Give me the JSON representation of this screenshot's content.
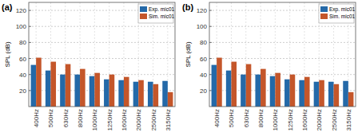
{
  "chart_data": [
    {
      "type": "bar",
      "title": "(a)",
      "y_label": "SPL (dB)",
      "categories": [
        "400Hz",
        "500Hz",
        "630Hz",
        "800Hz",
        "1000Hz",
        "1250Hz",
        "1600Hz",
        "2000Hz",
        "2500Hz",
        "3150Hz"
      ],
      "series": [
        {
          "name": "Exp. mic01",
          "color": "#2469a8",
          "values": [
            52,
            45,
            40,
            40,
            38,
            34,
            33,
            31,
            31,
            32
          ]
        },
        {
          "name": "Sim. mic01",
          "color": "#c4562a",
          "values": [
            61,
            56,
            53,
            47,
            42,
            40,
            37,
            33,
            28,
            18
          ]
        }
      ],
      "ylim": [
        0,
        130
      ],
      "yticks": [
        20,
        40,
        60,
        80,
        100,
        120
      ],
      "grid": true,
      "legend": "upper right"
    },
    {
      "type": "bar",
      "title": "(b)",
      "y_label": "SPL (dB)",
      "categories": [
        "400Hz",
        "500Hz",
        "630Hz",
        "800Hz",
        "1000Hz",
        "1250Hz",
        "1600Hz",
        "2000Hz",
        "2500Hz",
        "3150Hz"
      ],
      "series": [
        {
          "name": "Exp. mic01",
          "color": "#2469a8",
          "values": [
            52,
            45,
            40,
            40,
            38,
            34,
            33,
            31,
            31,
            32
          ]
        },
        {
          "name": "Sim. mic01",
          "color": "#c4562a",
          "values": [
            61,
            56,
            53,
            47,
            42,
            40,
            37,
            33,
            28,
            18
          ]
        }
      ],
      "ylim": [
        0,
        130
      ],
      "yticks": [
        20,
        40,
        60,
        80,
        100,
        120
      ],
      "grid": true,
      "legend": "upper right"
    }
  ]
}
